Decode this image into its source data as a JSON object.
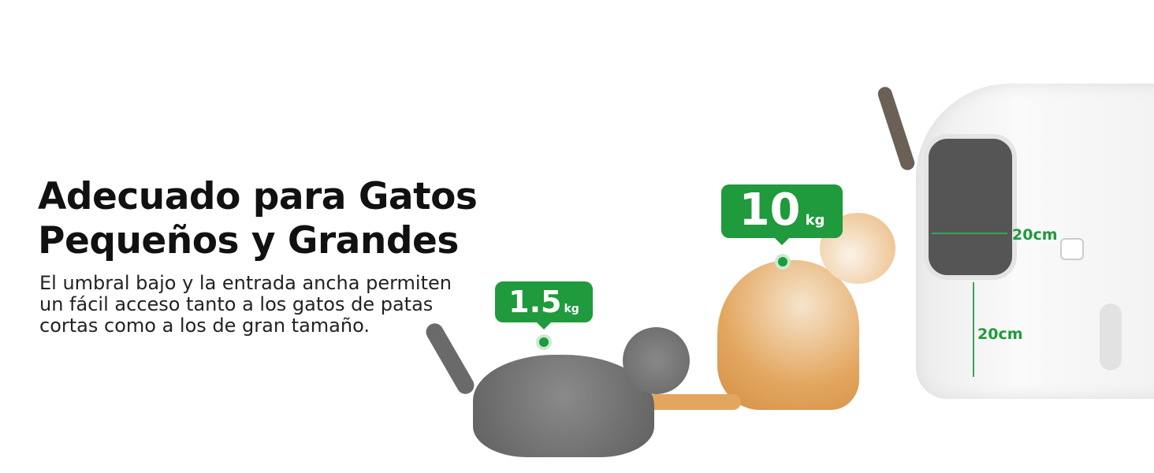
{
  "headline": {
    "line1": "Adecuado para Gatos",
    "line2": "Pequeños y Grandes"
  },
  "description": {
    "line1": "El umbral bajo y la entrada ancha permiten",
    "line2": "un fácil acceso tanto a los gatos de patas",
    "line3": "cortas como a los de gran tamaño."
  },
  "small_cat": {
    "weight": "1.5",
    "unit": "kg"
  },
  "large_cat": {
    "weight": "10",
    "unit": "kg"
  },
  "dimensions": {
    "entrance_width": "20cm",
    "threshold_height": "20cm"
  },
  "colors": {
    "accent": "#1f9a3c"
  }
}
